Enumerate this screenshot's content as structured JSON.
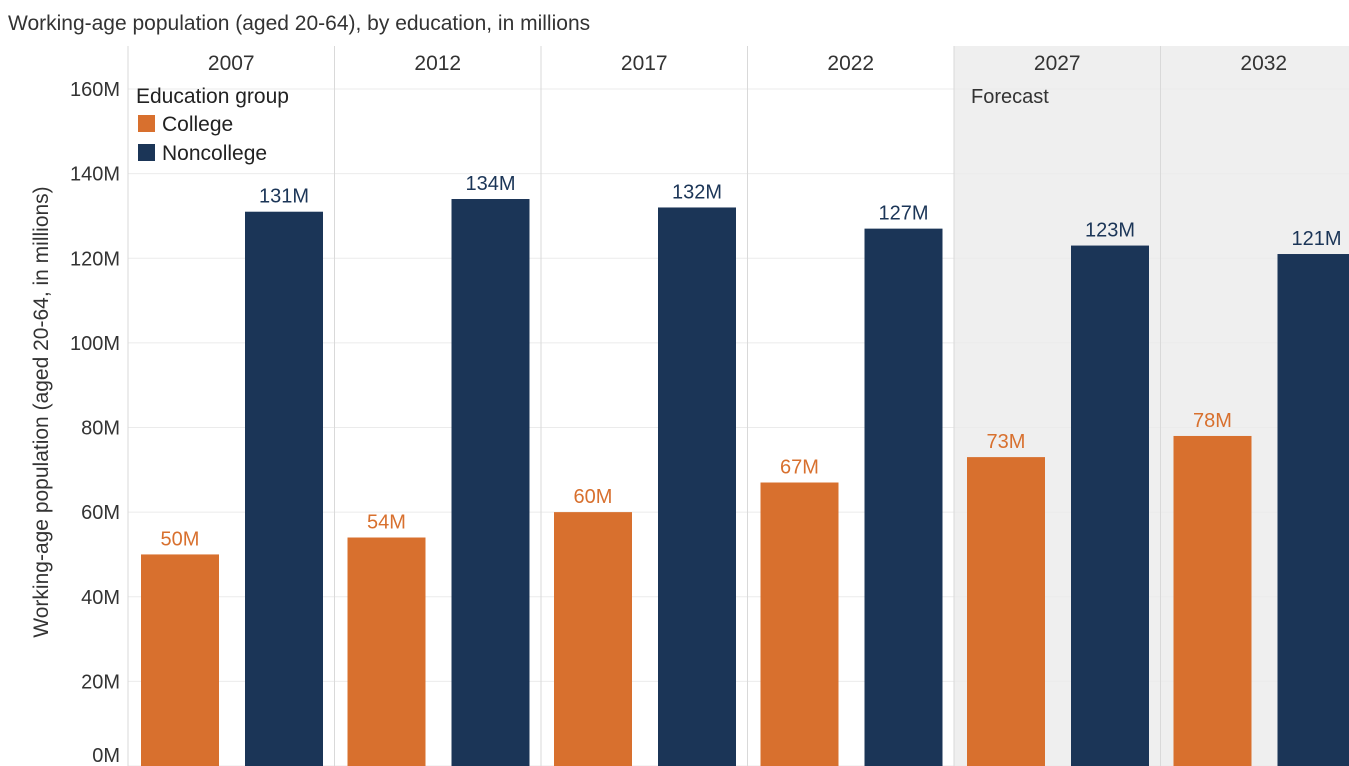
{
  "chart_data": {
    "type": "bar",
    "title": "Working-age population (aged 20-64), by education, in millions",
    "ylabel": "Working-age population (aged 20-64, in millions)",
    "ylim": [
      0,
      160
    ],
    "yticks": [
      "0M",
      "20M",
      "40M",
      "60M",
      "80M",
      "100M",
      "120M",
      "140M",
      "160M"
    ],
    "categories": [
      "2007",
      "2012",
      "2017",
      "2022",
      "2027",
      "2032"
    ],
    "series": [
      {
        "name": "College",
        "color": "#d8702e",
        "values": [
          50,
          54,
          60,
          67,
          73,
          78
        ],
        "labels": [
          "50M",
          "54M",
          "60M",
          "67M",
          "73M",
          "78M"
        ]
      },
      {
        "name": "Noncollege",
        "color": "#1b3557",
        "values": [
          131,
          134,
          132,
          127,
          123,
          121
        ],
        "labels": [
          "131M",
          "134M",
          "132M",
          "127M",
          "123M",
          "121M"
        ]
      }
    ],
    "legend": {
      "title": "Education group",
      "position": "top-left"
    },
    "forecast": {
      "label": "Forecast",
      "categories": [
        "2027",
        "2032"
      ],
      "shade_color": "#efefef"
    },
    "grid": true,
    "value_label_colors": {
      "College": "#d8702e",
      "Noncollege": "#1b3557"
    }
  }
}
